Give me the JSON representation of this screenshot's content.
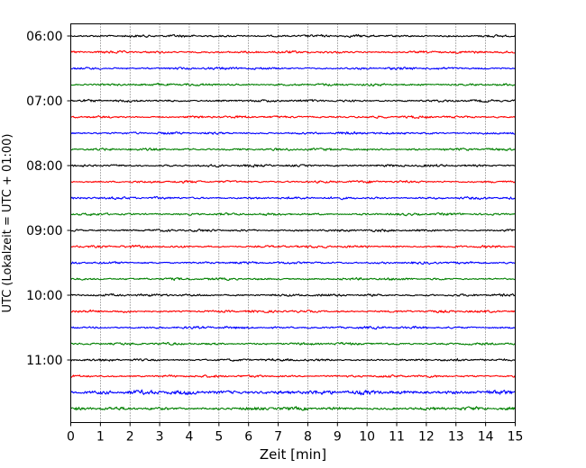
{
  "chart_data": {
    "type": "line",
    "subtype": "helicorder",
    "title": "",
    "xlabel": "Zeit  [min]",
    "ylabel": "UTC (Lokalzeit = UTC + 01:00)",
    "xlim": [
      0,
      15
    ],
    "x_ticks": [
      0,
      1,
      2,
      3,
      4,
      5,
      6,
      7,
      8,
      9,
      10,
      11,
      12,
      13,
      14,
      15
    ],
    "x_tick_labels": [
      "0",
      "1",
      "2",
      "3",
      "4",
      "5",
      "6",
      "7",
      "8",
      "9",
      "10",
      "11",
      "12",
      "13",
      "14",
      "15"
    ],
    "y_tick_labels": [
      "06:00",
      "07:00",
      "08:00",
      "09:00",
      "10:00",
      "11:00"
    ],
    "grid": "vertical dotted lines at each minute",
    "line_colors": [
      "#000000",
      "#ff0000",
      "#0000ff",
      "#008000"
    ],
    "rows": [
      {
        "start": "06:00",
        "color": "#000000"
      },
      {
        "start": "06:15",
        "color": "#ff0000"
      },
      {
        "start": "06:30",
        "color": "#0000ff"
      },
      {
        "start": "06:45",
        "color": "#008000"
      },
      {
        "start": "07:00",
        "color": "#000000"
      },
      {
        "start": "07:15",
        "color": "#ff0000"
      },
      {
        "start": "07:30",
        "color": "#0000ff"
      },
      {
        "start": "07:45",
        "color": "#008000"
      },
      {
        "start": "08:00",
        "color": "#000000"
      },
      {
        "start": "08:15",
        "color": "#ff0000"
      },
      {
        "start": "08:30",
        "color": "#0000ff"
      },
      {
        "start": "08:45",
        "color": "#008000"
      },
      {
        "start": "09:00",
        "color": "#000000"
      },
      {
        "start": "09:15",
        "color": "#ff0000"
      },
      {
        "start": "09:30",
        "color": "#0000ff"
      },
      {
        "start": "09:45",
        "color": "#008000"
      },
      {
        "start": "10:00",
        "color": "#000000"
      },
      {
        "start": "10:15",
        "color": "#ff0000"
      },
      {
        "start": "10:30",
        "color": "#0000ff"
      },
      {
        "start": "10:45",
        "color": "#008000"
      },
      {
        "start": "11:00",
        "color": "#000000"
      },
      {
        "start": "11:15",
        "color": "#ff0000"
      },
      {
        "start": "11:30",
        "color": "#0000ff"
      },
      {
        "start": "11:45",
        "color": "#008000"
      }
    ]
  }
}
